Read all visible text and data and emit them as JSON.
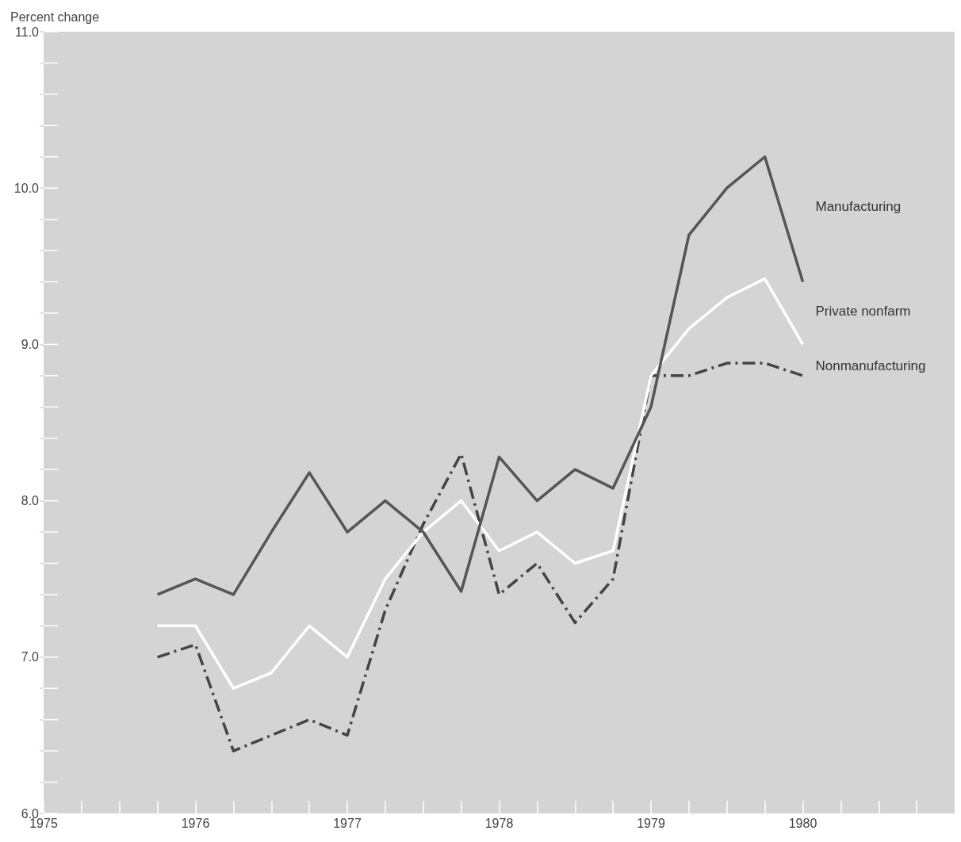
{
  "chart_data": {
    "type": "line",
    "ylabel": "Percent change",
    "x": [
      1975.75,
      1976,
      1976.25,
      1976.5,
      1976.75,
      1977,
      1977.25,
      1977.5,
      1977.75,
      1978,
      1978.25,
      1978.5,
      1978.75,
      1979,
      1979.25,
      1979.5,
      1979.75,
      1980
    ],
    "series": [
      {
        "name": "Manufacturing",
        "color": "#555555",
        "line_style": "solid",
        "values": [
          7.4,
          7.5,
          7.4,
          7.8,
          8.18,
          7.8,
          8.0,
          7.8,
          7.42,
          8.28,
          8.0,
          8.2,
          8.08,
          8.6,
          9.7,
          10.0,
          10.2,
          9.4
        ]
      },
      {
        "name": "Private nonfarm",
        "color": "#ffffff",
        "line_style": "solid",
        "values": [
          7.2,
          7.2,
          6.8,
          6.9,
          7.2,
          7.0,
          7.5,
          7.8,
          8.0,
          7.68,
          7.8,
          7.6,
          7.68,
          8.8,
          9.1,
          9.3,
          9.42,
          9.0
        ]
      },
      {
        "name": "Nonmanufacturing",
        "color": "#444444",
        "line_style": "dashed",
        "values": [
          7.0,
          7.08,
          6.4,
          6.5,
          6.6,
          6.5,
          7.3,
          7.85,
          8.3,
          7.4,
          7.6,
          7.22,
          7.5,
          8.8,
          8.8,
          8.88,
          8.88,
          8.8
        ]
      }
    ],
    "xlim": [
      1975,
      1981
    ],
    "xticks": [
      1975,
      {
        "value": 1975.25,
        "label": null
      },
      {
        "value": 1975.5,
        "label": null
      },
      {
        "value": 1975.75,
        "label": null
      },
      1976,
      {
        "value": 1976.25,
        "label": null
      },
      {
        "value": 1976.5,
        "label": null
      },
      {
        "value": 1976.75,
        "label": null
      },
      1977,
      {
        "value": 1977.25,
        "label": null
      },
      {
        "value": 1977.5,
        "label": null
      },
      {
        "value": 1977.75,
        "label": null
      },
      1978,
      {
        "value": 1978.25,
        "label": null
      },
      {
        "value": 1978.5,
        "label": null
      },
      {
        "value": 1978.75,
        "label": null
      },
      1979,
      {
        "value": 1979.25,
        "label": null
      },
      {
        "value": 1979.5,
        "label": null
      },
      {
        "value": 1979.75,
        "label": null
      },
      1980,
      {
        "value": 1980.25,
        "label": null
      },
      {
        "value": 1980.5,
        "label": null
      },
      {
        "value": 1980.75,
        "label": null
      }
    ],
    "ylim": [
      6,
      11
    ],
    "yticks": [
      {
        "value": 6,
        "label": "6.0"
      },
      {
        "value": 6.2,
        "label": null
      },
      {
        "value": 6.4,
        "label": null
      },
      {
        "value": 6.6,
        "label": null
      },
      {
        "value": 6.8,
        "label": null
      },
      {
        "value": 7,
        "label": "7.0"
      },
      {
        "value": 7.2,
        "label": null
      },
      {
        "value": 7.4,
        "label": null
      },
      {
        "value": 7.6,
        "label": null
      },
      {
        "value": 7.8,
        "label": null
      },
      {
        "value": 8,
        "label": "8.0"
      },
      {
        "value": 8.2,
        "label": null
      },
      {
        "value": 8.4,
        "label": null
      },
      {
        "value": 8.6,
        "label": null
      },
      {
        "value": 8.8,
        "label": null
      },
      {
        "value": 9,
        "label": "9.0"
      },
      {
        "value": 9.2,
        "label": null
      },
      {
        "value": 9.4,
        "label": null
      },
      {
        "value": 9.6,
        "label": null
      },
      {
        "value": 9.8,
        "label": null
      },
      {
        "value": 10,
        "label": "10.0"
      },
      {
        "value": 10.2,
        "label": null
      },
      {
        "value": 10.4,
        "label": null
      },
      {
        "value": 10.6,
        "label": null
      },
      {
        "value": 10.8,
        "label": null
      },
      {
        "value": 11,
        "label": "11.0"
      }
    ],
    "grid": false,
    "legend": false,
    "marker": "none"
  }
}
